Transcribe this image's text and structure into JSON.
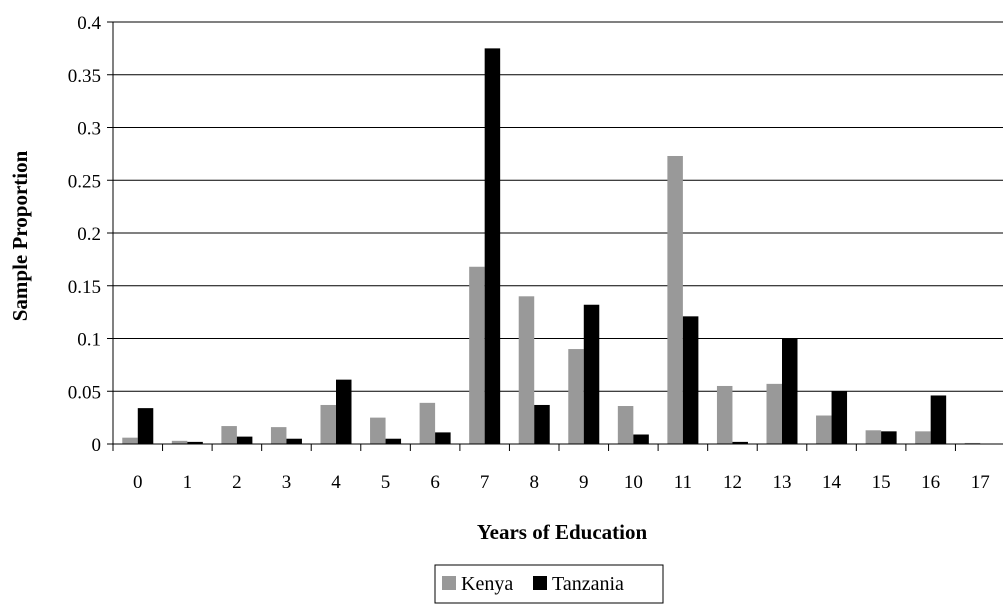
{
  "chart_data": {
    "type": "bar",
    "title": "",
    "xlabel": "Years of Education",
    "ylabel": "Sample Proportion",
    "categories": [
      "0",
      "1",
      "2",
      "3",
      "4",
      "5",
      "6",
      "7",
      "8",
      "9",
      "10",
      "11",
      "12",
      "13",
      "14",
      "15",
      "16",
      "17"
    ],
    "series": [
      {
        "name": "Kenya",
        "color": "#999999",
        "values": [
          0.006,
          0.003,
          0.017,
          0.016,
          0.037,
          0.025,
          0.039,
          0.168,
          0.14,
          0.09,
          0.036,
          0.273,
          0.055,
          0.057,
          0.027,
          0.013,
          0.012,
          0.001
        ]
      },
      {
        "name": "Tanzania",
        "color": "#000000",
        "values": [
          0.034,
          0.002,
          0.007,
          0.005,
          0.061,
          0.005,
          0.011,
          0.375,
          0.037,
          0.132,
          0.009,
          0.121,
          0.002,
          0.1,
          0.05,
          0.012,
          0.046,
          0.0
        ]
      }
    ],
    "ylim": [
      0,
      0.4
    ],
    "yticks": [
      "0",
      "0.05",
      "0.1",
      "0.15",
      "0.2",
      "0.25",
      "0.3",
      "0.35",
      "0.4"
    ],
    "grid": true,
    "legend": "bottom-center"
  }
}
